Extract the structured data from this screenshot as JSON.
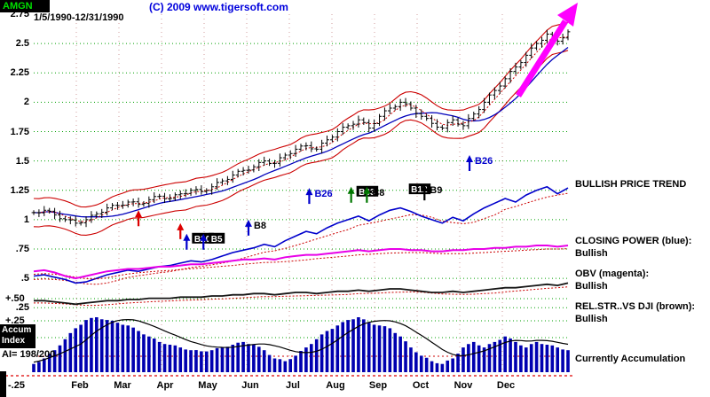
{
  "header": {
    "symbol": "AMGN",
    "copyright": "(C) 2009 www.tigersoft.com",
    "date_range": "1/5/1990-12/31/1990"
  },
  "y_axis": {
    "labels": [
      {
        "text": "2.75",
        "value": 2.75
      },
      {
        "text": "2.5",
        "value": 2.5
      },
      {
        "text": "2.25",
        "value": 2.25
      },
      {
        "text": "2",
        "value": 2
      },
      {
        "text": "1.75",
        "value": 1.75
      },
      {
        "text": "1.5",
        "value": 1.5
      },
      {
        "text": "1.25",
        "value": 1.25
      },
      {
        "text": "1",
        "value": 1
      },
      {
        "text": ".75",
        "value": 0.75
      },
      {
        "text": ".5",
        "value": 0.5
      },
      {
        "text": ".25",
        "value": 0.25
      }
    ]
  },
  "x_axis": {
    "months": [
      "Feb",
      "Mar",
      "Apr",
      "May",
      "Jun",
      "Jul",
      "Aug",
      "Sep",
      "Oct",
      "Nov",
      "Dec"
    ]
  },
  "left_labels": {
    "plus50": "+.50",
    "plus25": "+.25",
    "minus25": "-.25",
    "accum1": "Accum",
    "accum2": "Index",
    "ai": "AI= 198/200"
  },
  "right_panel": {
    "price_trend": "BULLISH PRICE TREND",
    "cp_title": "CLOSING POWER (blue):",
    "cp_status": "Bullish",
    "obv_title": "OBV (magenta):",
    "obv_status": "Bullish",
    "rs_title": "REL.STR..VS DJI (brown):",
    "rs_status": "Bullish",
    "current": "Currently Accumulation"
  },
  "colors": {
    "closing_power": "#0000CC",
    "obv": "#E800E8",
    "rel_strength": "#151515",
    "bands": "#CC0000",
    "grid": "#00A000",
    "accum_bars": "#0000B0",
    "trend_arrow": "#FF00FF",
    "symbol": "#00E000"
  },
  "chart_data": {
    "type": "mixed",
    "components": [
      "candlestick price with red envelope bands",
      "closing power line",
      "obv line",
      "relative strength line",
      "accumulation histogram"
    ],
    "title": "AMGN 1/5/1990-12/31/1990",
    "xlabel": "",
    "ylabel": "Price",
    "ylim": [
      -0.25,
      2.75
    ],
    "x_unit": "weeks of 1990",
    "months": [
      "Feb",
      "Mar",
      "Apr",
      "May",
      "Jun",
      "Jul",
      "Aug",
      "Sep",
      "Oct",
      "Nov",
      "Dec"
    ],
    "price": {
      "close": [
        1.06,
        1.08,
        1.04,
        1.0,
        0.97,
        1.0,
        1.05,
        1.1,
        1.12,
        1.15,
        1.13,
        1.17,
        1.2,
        1.18,
        1.22,
        1.25,
        1.24,
        1.28,
        1.33,
        1.38,
        1.42,
        1.45,
        1.5,
        1.48,
        1.55,
        1.6,
        1.63,
        1.6,
        1.68,
        1.75,
        1.8,
        1.85,
        1.78,
        1.88,
        1.95,
        2.0,
        1.95,
        1.88,
        1.82,
        1.78,
        1.85,
        1.8,
        1.9,
        2.0,
        2.1,
        2.2,
        2.3,
        2.4,
        2.5,
        2.58,
        2.52,
        2.6
      ]
    },
    "closing_power": [
      0.52,
      0.53,
      0.51,
      0.49,
      0.46,
      0.47,
      0.5,
      0.53,
      0.55,
      0.57,
      0.56,
      0.58,
      0.6,
      0.61,
      0.63,
      0.65,
      0.64,
      0.66,
      0.69,
      0.72,
      0.74,
      0.76,
      0.79,
      0.77,
      0.82,
      0.86,
      0.9,
      0.88,
      0.93,
      0.97,
      1.0,
      1.03,
      0.99,
      1.04,
      1.08,
      1.1,
      1.07,
      1.03,
      1.0,
      0.97,
      1.02,
      0.99,
      1.05,
      1.1,
      1.14,
      1.18,
      1.15,
      1.21,
      1.25,
      1.28,
      1.22,
      1.27
    ],
    "obv": [
      0.56,
      0.57,
      0.55,
      0.52,
      0.5,
      0.52,
      0.54,
      0.56,
      0.57,
      0.58,
      0.58,
      0.59,
      0.6,
      0.6,
      0.61,
      0.62,
      0.62,
      0.63,
      0.64,
      0.65,
      0.66,
      0.66,
      0.67,
      0.66,
      0.68,
      0.69,
      0.7,
      0.7,
      0.71,
      0.72,
      0.73,
      0.74,
      0.73,
      0.74,
      0.75,
      0.75,
      0.74,
      0.74,
      0.73,
      0.73,
      0.74,
      0.74,
      0.75,
      0.75,
      0.76,
      0.76,
      0.77,
      0.77,
      0.78,
      0.78,
      0.77,
      0.78
    ],
    "rel_strength": [
      0.31,
      0.31,
      0.3,
      0.29,
      0.28,
      0.29,
      0.3,
      0.31,
      0.31,
      0.32,
      0.32,
      0.33,
      0.33,
      0.33,
      0.34,
      0.34,
      0.34,
      0.35,
      0.35,
      0.36,
      0.36,
      0.37,
      0.37,
      0.36,
      0.37,
      0.38,
      0.38,
      0.37,
      0.38,
      0.39,
      0.39,
      0.4,
      0.39,
      0.4,
      0.41,
      0.41,
      0.4,
      0.39,
      0.38,
      0.38,
      0.39,
      0.38,
      0.39,
      0.4,
      0.41,
      0.42,
      0.42,
      0.43,
      0.44,
      0.45,
      0.44,
      0.46
    ],
    "accum": [
      0.15,
      0.25,
      0.4,
      0.6,
      0.8,
      0.95,
      1.0,
      0.95,
      0.9,
      0.85,
      0.75,
      0.65,
      0.55,
      0.5,
      0.45,
      0.4,
      0.38,
      0.4,
      0.45,
      0.5,
      0.55,
      0.5,
      0.4,
      0.25,
      0.2,
      0.3,
      0.45,
      0.6,
      0.75,
      0.85,
      0.95,
      1.0,
      0.9,
      0.85,
      0.8,
      0.65,
      0.45,
      0.3,
      0.2,
      0.15,
      0.25,
      0.45,
      0.55,
      0.45,
      0.55,
      0.65,
      0.55,
      0.45,
      0.55,
      0.5,
      0.45,
      0.4
    ],
    "signals": [
      {
        "week": 10,
        "price": 1.08,
        "arrow": "red",
        "label": "",
        "badge": false
      },
      {
        "week": 14,
        "price": 0.97,
        "arrow": "red",
        "label": "",
        "badge": false
      },
      {
        "week": 14.6,
        "price": 0.88,
        "arrow": "blue",
        "label": "B20",
        "badge": true
      },
      {
        "week": 16.2,
        "price": 0.88,
        "arrow": "blue",
        "label": "B5",
        "badge": true
      },
      {
        "week": 20.5,
        "price": 1.0,
        "arrow": "blue",
        "label": "B8",
        "badge": false,
        "color": "black"
      },
      {
        "week": 26.3,
        "price": 1.27,
        "arrow": "blue",
        "label": "B26",
        "badge": false,
        "color": "blue"
      },
      {
        "week": 30.3,
        "price": 1.28,
        "arrow": "green",
        "label": "B63",
        "badge": true
      },
      {
        "week": 31.8,
        "price": 1.28,
        "arrow": "green",
        "label": "B8",
        "badge": false,
        "color": "black"
      },
      {
        "week": 35.3,
        "price": 1.3,
        "arrow": "none",
        "label": "B12",
        "badge": true
      },
      {
        "week": 37.3,
        "price": 1.3,
        "arrow": "black",
        "label": "B9",
        "badge": false,
        "color": "black"
      },
      {
        "week": 41.6,
        "price": 1.55,
        "arrow": "blue",
        "label": "B26",
        "badge": false,
        "color": "blue"
      }
    ]
  }
}
